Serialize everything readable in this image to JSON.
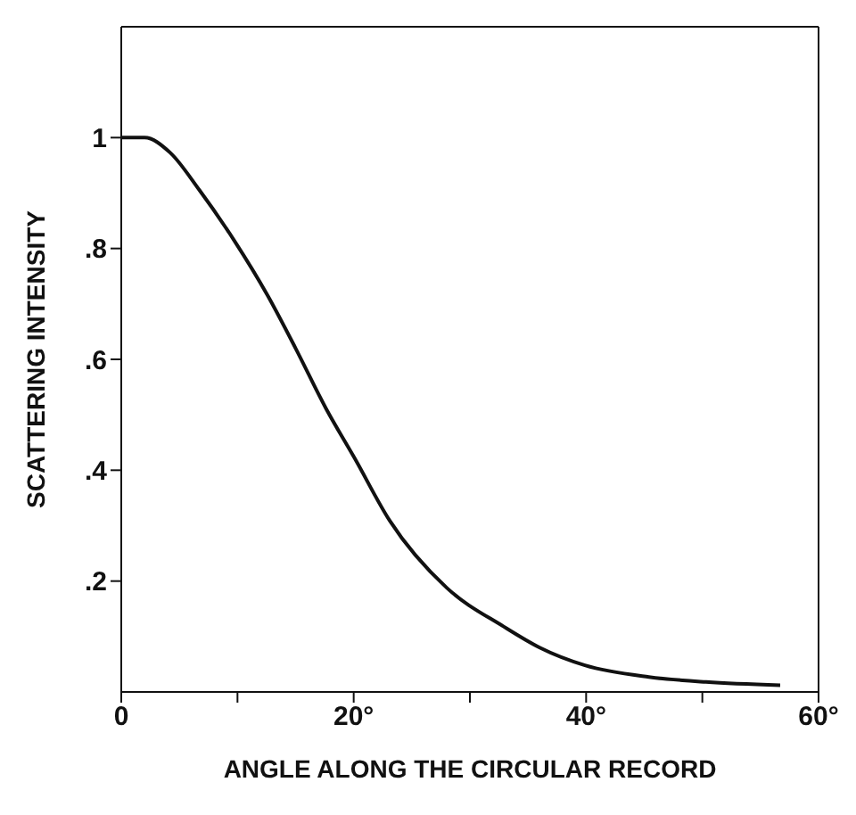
{
  "chart_data": {
    "type": "line",
    "xlabel": "ANGLE ALONG THE CIRCULAR RECORD",
    "ylabel": "SCATTERING INTENSITY",
    "x": [
      0,
      2,
      4.2,
      6.7,
      9.7,
      12.6,
      15,
      17.6,
      20.1,
      23.1,
      28,
      32.9,
      36,
      39.9,
      45.4,
      50.3,
      56.7
    ],
    "series": [
      {
        "color": "#111111",
        "values": [
          1,
          1,
          0.973,
          0.906,
          0.815,
          0.715,
          0.62,
          0.512,
          0.421,
          0.309,
          0.188,
          0.118,
          0.08,
          0.048,
          0.027,
          0.018,
          0.012
        ]
      }
    ],
    "xlim": [
      0,
      60
    ],
    "ylim": [
      0,
      1.2
    ],
    "xticks": [
      {
        "value": 0,
        "label": "0"
      },
      {
        "value": 10,
        "label": null
      },
      {
        "value": 20,
        "label": "20°"
      },
      {
        "value": 30,
        "label": null
      },
      {
        "value": 40,
        "label": "40°"
      },
      {
        "value": 50,
        "label": null
      },
      {
        "value": 60,
        "label": "60°"
      }
    ],
    "yticks": [
      {
        "value": 0.2,
        "label": ".2"
      },
      {
        "value": 0.4,
        "label": ".4"
      },
      {
        "value": 0.6,
        "label": ".6"
      },
      {
        "value": 0.8,
        "label": ".8"
      },
      {
        "value": 1,
        "label": "1"
      }
    ],
    "grid": false,
    "marker": "none",
    "line_style": "solid",
    "legend": false
  }
}
